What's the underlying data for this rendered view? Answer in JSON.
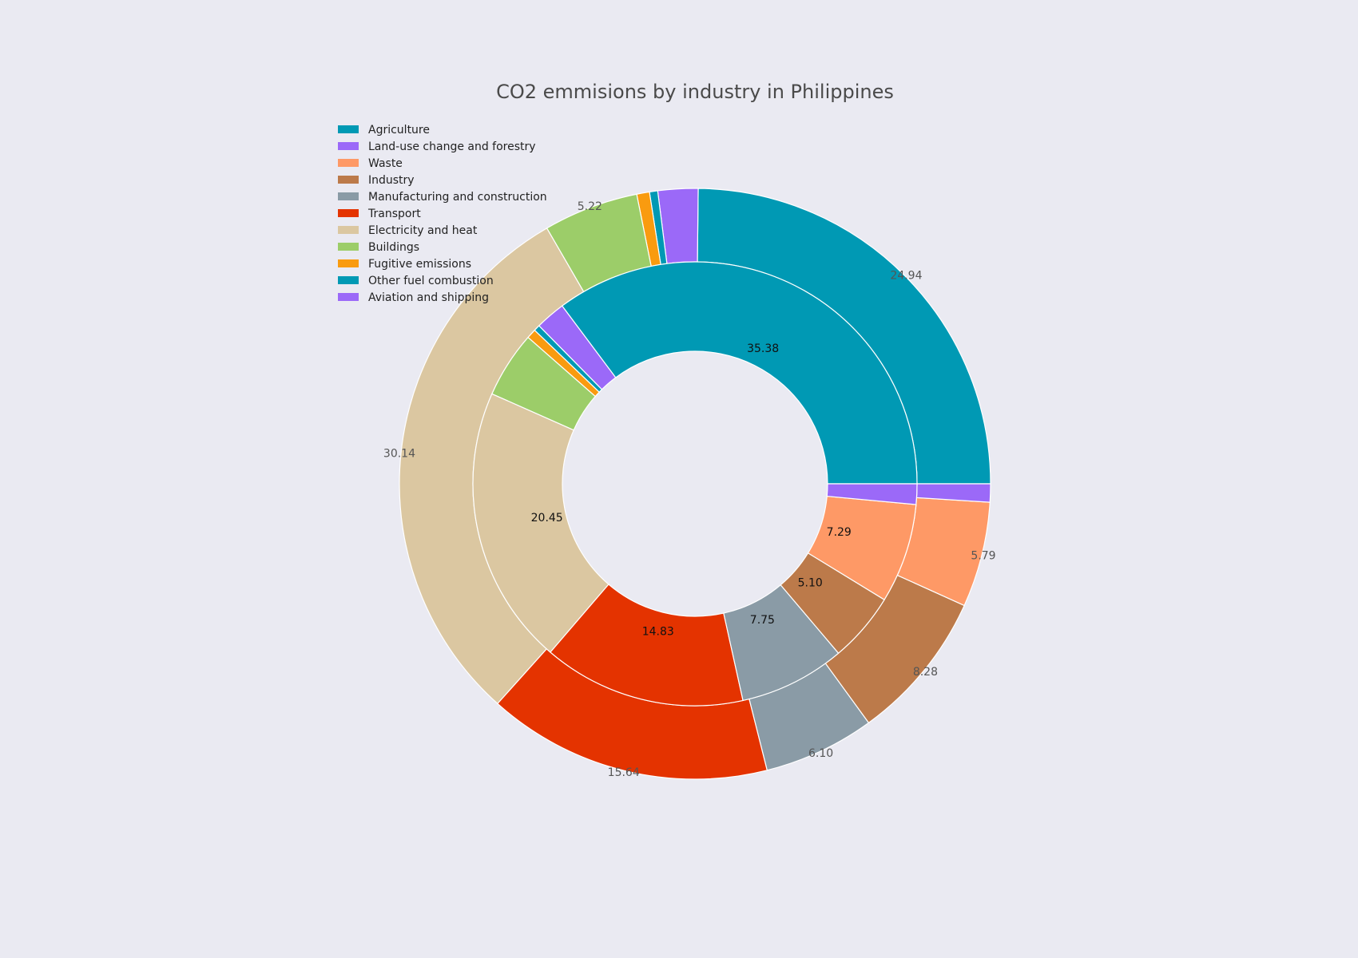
{
  "chart_data": {
    "type": "pie",
    "subtype": "nested-donut",
    "title": "CO2 emmisions by industry in Philippines",
    "legend": {
      "position": "top-left",
      "entries": [
        {
          "label": "Agriculture",
          "color": "#0099b4"
        },
        {
          "label": "Land-use change and forestry",
          "color": "#9b69f8"
        },
        {
          "label": "Waste",
          "color": "#fe9966"
        },
        {
          "label": "Industry",
          "color": "#bc7a4a"
        },
        {
          "label": "Manufacturing and construction",
          "color": "#8a9ba6"
        },
        {
          "label": "Transport",
          "color": "#e43300"
        },
        {
          "label": "Electricity and heat",
          "color": "#dbc7a1"
        },
        {
          "label": "Buildings",
          "color": "#9ccd69"
        },
        {
          "label": "Fugitive emissions",
          "color": "#f99b0f"
        },
        {
          "label": "Other fuel combustion",
          "color": "#0099b4"
        },
        {
          "label": "Aviation and shipping",
          "color": "#9b69f8"
        }
      ]
    },
    "outer_ring": [
      {
        "name": "Agriculture",
        "value": 24.94,
        "label": "24.94",
        "color": "#0099b4"
      },
      {
        "name": "Land-use change and forestry",
        "value": 2.2,
        "label": "",
        "color": "#9b69f8"
      },
      {
        "name": "Other fuel combustion",
        "value": 0.45,
        "label": "",
        "color": "#0099b4"
      },
      {
        "name": "Fugitive emissions",
        "value": 0.7,
        "label": "",
        "color": "#f99b0f"
      },
      {
        "name": "Buildings",
        "value": 5.22,
        "label": "5.22",
        "color": "#9ccd69"
      },
      {
        "name": "Electricity and heat",
        "value": 30.14,
        "label": "30.14",
        "color": "#dbc7a1"
      },
      {
        "name": "Transport",
        "value": 15.64,
        "label": "15.64",
        "color": "#e43300"
      },
      {
        "name": "Manufacturing and construction",
        "value": 6.1,
        "label": "6.10",
        "color": "#8a9ba6"
      },
      {
        "name": "Industry",
        "value": 8.28,
        "label": "8.28",
        "color": "#bc7a4a"
      },
      {
        "name": "Waste",
        "value": 5.79,
        "label": "5.79",
        "color": "#fe9966"
      },
      {
        "name": "Aviation and shipping",
        "value": 1.0,
        "label": "",
        "color": "#9b69f8"
      }
    ],
    "inner_ring": [
      {
        "name": "Agriculture",
        "value": 35.38,
        "label": "35.38",
        "color": "#0099b4"
      },
      {
        "name": "Land-use change and forestry",
        "value": 2.2,
        "label": "",
        "color": "#9b69f8"
      },
      {
        "name": "Other fuel combustion",
        "value": 0.45,
        "label": "",
        "color": "#0099b4"
      },
      {
        "name": "Fugitive emissions",
        "value": 0.7,
        "label": "",
        "color": "#f99b0f"
      },
      {
        "name": "Buildings",
        "value": 4.85,
        "label": "",
        "color": "#9ccd69"
      },
      {
        "name": "Electricity and heat",
        "value": 20.45,
        "label": "20.45",
        "color": "#dbc7a1"
      },
      {
        "name": "Transport",
        "value": 14.83,
        "label": "14.83",
        "color": "#e43300"
      },
      {
        "name": "Manufacturing and construction",
        "value": 7.75,
        "label": "7.75",
        "color": "#8a9ba6"
      },
      {
        "name": "Industry",
        "value": 5.1,
        "label": "5.10",
        "color": "#bc7a4a"
      },
      {
        "name": "Waste",
        "value": 7.29,
        "label": "7.29",
        "color": "#fe9966"
      },
      {
        "name": "Aviation and shipping",
        "value": 1.5,
        "label": "",
        "color": "#9b69f8"
      }
    ]
  }
}
